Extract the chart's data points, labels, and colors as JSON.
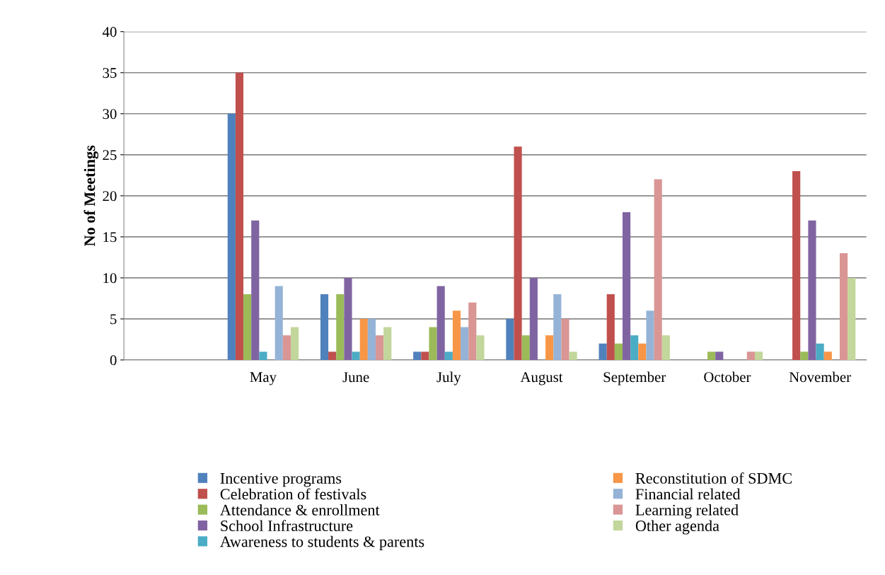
{
  "chart_data": {
    "type": "bar",
    "ylabel": "No of Meetings",
    "categories": [
      null,
      "May",
      "June",
      "July",
      "August",
      "September",
      "October",
      "November"
    ],
    "ylim": [
      0,
      40
    ],
    "yticks": [
      0,
      5,
      10,
      15,
      20,
      25,
      30,
      35,
      40
    ],
    "grid": "y",
    "legend": "bottom",
    "series": [
      {
        "name": "Incentive programs",
        "color": "#4f81bd",
        "values": [
          0,
          30,
          8,
          1,
          5,
          2,
          0,
          0
        ]
      },
      {
        "name": "Celebration of festivals",
        "color": "#c0504d",
        "values": [
          0,
          35,
          1,
          1,
          26,
          8,
          0,
          23
        ]
      },
      {
        "name": "Attendance & enrollment",
        "color": "#9bbb59",
        "values": [
          0,
          8,
          8,
          4,
          3,
          2,
          1,
          1
        ]
      },
      {
        "name": "School Infrastructure",
        "color": "#8064a2",
        "values": [
          0,
          17,
          10,
          9,
          10,
          18,
          1,
          17
        ]
      },
      {
        "name": "Awareness to students & parents",
        "color": "#4bacc6",
        "values": [
          0,
          1,
          1,
          1,
          0,
          3,
          0,
          2
        ]
      },
      {
        "name": "Reconstitution of SDMC",
        "color": "#f79646",
        "values": [
          0,
          0,
          5,
          6,
          3,
          2,
          0,
          1
        ]
      },
      {
        "name": "Financial related",
        "color": "#95b3d7",
        "values": [
          0,
          9,
          5,
          4,
          8,
          6,
          0,
          0
        ]
      },
      {
        "name": "Learning related",
        "color": "#d99694",
        "values": [
          0,
          3,
          3,
          7,
          5,
          22,
          1,
          13
        ]
      },
      {
        "name": "Other agenda",
        "color": "#c3d69b",
        "values": [
          0,
          4,
          4,
          3,
          1,
          3,
          1,
          10
        ]
      }
    ]
  }
}
